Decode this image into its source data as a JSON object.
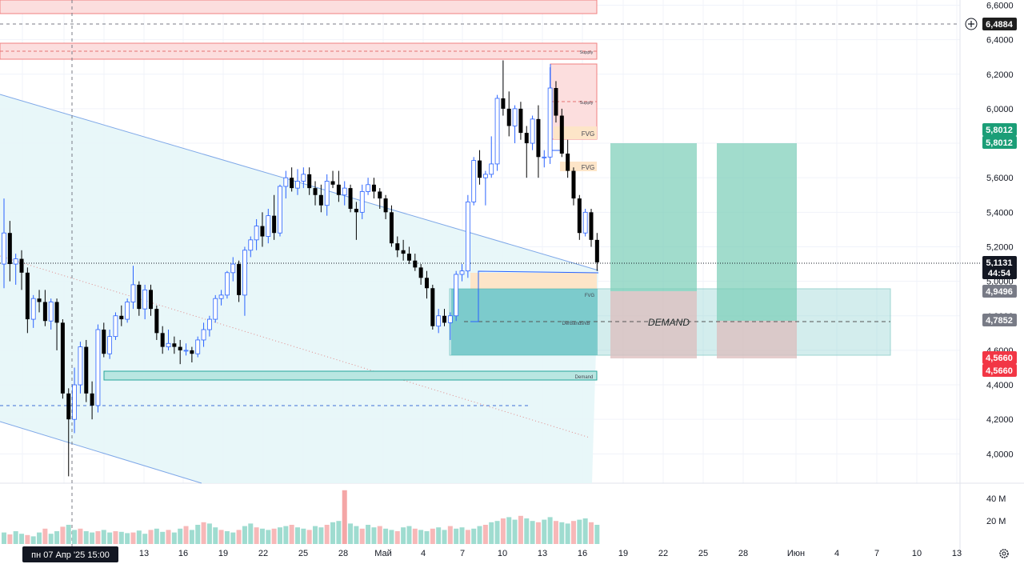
{
  "chart_data": {
    "type": "candlestick",
    "price_axis": {
      "ticks": [
        "6,6000",
        "6,4000",
        "6,2000",
        "6,0000",
        "5,8000",
        "5,6000",
        "5,4000",
        "5,2000",
        "5,0000",
        "4,8000",
        "4,6000",
        "4,4000",
        "4,2000",
        "4,0000"
      ],
      "ylim": [
        3.83,
        6.63
      ]
    },
    "volume_axis": {
      "ticks": [
        "40 M",
        "20 M"
      ]
    },
    "time_axis": {
      "ticks": [
        "13",
        "16",
        "19",
        "22",
        "25",
        "28",
        "Май",
        "4",
        "7",
        "10",
        "13",
        "16",
        "19",
        "22",
        "25",
        "28",
        "Июн",
        "4",
        "7",
        "10",
        "13"
      ],
      "crosshair_label": "пн 07 Апр '25   15:00"
    },
    "price_badges": [
      {
        "text": "6,4884",
        "color": "#1e1e1e"
      },
      {
        "text": "5,8012",
        "color": "#1b9e77"
      },
      {
        "text": "5,8012",
        "color": "#1b9e77"
      },
      {
        "text": "5,1131",
        "color": "#131722"
      },
      {
        "text": "44:54",
        "color": "#131722"
      },
      {
        "text": "4,9496",
        "color": "#787b86"
      },
      {
        "text": "4,7852",
        "color": "#787b86"
      },
      {
        "text": "4,5660",
        "color": "#f23645"
      },
      {
        "text": "4,5660",
        "color": "#f23645"
      }
    ],
    "zones": [
      {
        "label": "Supply",
        "kind": "supply"
      },
      {
        "label": "Supply",
        "kind": "supply"
      },
      {
        "label": "FVG",
        "kind": "fvg"
      },
      {
        "label": "FVG",
        "kind": "fvg"
      },
      {
        "label": "FVG",
        "kind": "fvg"
      },
      {
        "label": "DerBandsNB",
        "kind": "demand"
      },
      {
        "label": "Demand",
        "kind": "demand"
      },
      {
        "label": "DEMAND",
        "kind": "projection"
      }
    ],
    "candles": [
      {
        "o": 5.1,
        "h": 5.48,
        "l": 4.96,
        "c": 5.28
      },
      {
        "o": 5.28,
        "h": 5.35,
        "l": 5.0,
        "c": 5.1
      },
      {
        "o": 5.1,
        "h": 5.16,
        "l": 4.98,
        "c": 5.13
      },
      {
        "o": 5.13,
        "h": 5.18,
        "l": 4.95,
        "c": 5.05
      },
      {
        "o": 5.05,
        "h": 5.08,
        "l": 4.7,
        "c": 4.78
      },
      {
        "o": 4.78,
        "h": 4.92,
        "l": 4.73,
        "c": 4.9
      },
      {
        "o": 4.9,
        "h": 4.95,
        "l": 4.82,
        "c": 4.88
      },
      {
        "o": 4.88,
        "h": 4.95,
        "l": 4.74,
        "c": 4.77
      },
      {
        "o": 4.77,
        "h": 4.9,
        "l": 4.72,
        "c": 4.88
      },
      {
        "o": 4.88,
        "h": 4.9,
        "l": 4.6,
        "c": 4.76
      },
      {
        "o": 4.76,
        "h": 4.78,
        "l": 4.32,
        "c": 4.35
      },
      {
        "o": 4.35,
        "h": 4.38,
        "l": 3.87,
        "c": 4.2
      },
      {
        "o": 4.2,
        "h": 4.5,
        "l": 4.12,
        "c": 4.4
      },
      {
        "o": 4.4,
        "h": 4.65,
        "l": 4.35,
        "c": 4.62
      },
      {
        "o": 4.62,
        "h": 4.66,
        "l": 4.3,
        "c": 4.35
      },
      {
        "o": 4.35,
        "h": 4.42,
        "l": 4.2,
        "c": 4.28
      },
      {
        "o": 4.28,
        "h": 4.75,
        "l": 4.24,
        "c": 4.72
      },
      {
        "o": 4.72,
        "h": 4.76,
        "l": 4.56,
        "c": 4.58
      },
      {
        "o": 4.58,
        "h": 4.72,
        "l": 4.55,
        "c": 4.68
      },
      {
        "o": 4.68,
        "h": 4.82,
        "l": 4.66,
        "c": 4.8
      },
      {
        "o": 4.8,
        "h": 4.86,
        "l": 4.74,
        "c": 4.78
      },
      {
        "o": 4.78,
        "h": 4.9,
        "l": 4.76,
        "c": 4.88
      },
      {
        "o": 4.88,
        "h": 5.09,
        "l": 4.84,
        "c": 4.98
      },
      {
        "o": 4.98,
        "h": 5.0,
        "l": 4.8,
        "c": 4.84
      },
      {
        "o": 4.84,
        "h": 4.98,
        "l": 4.78,
        "c": 4.95
      },
      {
        "o": 4.95,
        "h": 4.98,
        "l": 4.8,
        "c": 4.84
      },
      {
        "o": 4.84,
        "h": 4.86,
        "l": 4.66,
        "c": 4.7
      },
      {
        "o": 4.7,
        "h": 4.74,
        "l": 4.58,
        "c": 4.62
      },
      {
        "o": 4.62,
        "h": 4.72,
        "l": 4.6,
        "c": 4.64
      },
      {
        "o": 4.64,
        "h": 4.68,
        "l": 4.58,
        "c": 4.62
      },
      {
        "o": 4.62,
        "h": 4.66,
        "l": 4.52,
        "c": 4.6
      },
      {
        "o": 4.6,
        "h": 4.64,
        "l": 4.57,
        "c": 4.6
      },
      {
        "o": 4.6,
        "h": 4.62,
        "l": 4.53,
        "c": 4.58
      },
      {
        "o": 4.58,
        "h": 4.68,
        "l": 4.56,
        "c": 4.66
      },
      {
        "o": 4.66,
        "h": 4.76,
        "l": 4.62,
        "c": 4.72
      },
      {
        "o": 4.72,
        "h": 4.8,
        "l": 4.68,
        "c": 4.78
      },
      {
        "o": 4.78,
        "h": 4.92,
        "l": 4.76,
        "c": 4.9
      },
      {
        "o": 4.9,
        "h": 4.95,
        "l": 4.86,
        "c": 4.92
      },
      {
        "o": 4.92,
        "h": 5.06,
        "l": 4.9,
        "c": 5.05
      },
      {
        "o": 5.05,
        "h": 5.14,
        "l": 5.0,
        "c": 5.1
      },
      {
        "o": 5.1,
        "h": 5.12,
        "l": 4.88,
        "c": 4.92
      },
      {
        "o": 4.92,
        "h": 5.2,
        "l": 4.8,
        "c": 5.18
      },
      {
        "o": 5.18,
        "h": 5.26,
        "l": 5.14,
        "c": 5.24
      },
      {
        "o": 5.24,
        "h": 5.36,
        "l": 5.18,
        "c": 5.32
      },
      {
        "o": 5.32,
        "h": 5.4,
        "l": 5.2,
        "c": 5.26
      },
      {
        "o": 5.26,
        "h": 5.42,
        "l": 5.22,
        "c": 5.38
      },
      {
        "o": 5.38,
        "h": 5.5,
        "l": 5.24,
        "c": 5.28
      },
      {
        "o": 5.28,
        "h": 5.56,
        "l": 5.26,
        "c": 5.55
      },
      {
        "o": 5.55,
        "h": 5.64,
        "l": 5.48,
        "c": 5.6
      },
      {
        "o": 5.6,
        "h": 5.66,
        "l": 5.52,
        "c": 5.54
      },
      {
        "o": 5.54,
        "h": 5.65,
        "l": 5.5,
        "c": 5.58
      },
      {
        "o": 5.58,
        "h": 5.66,
        "l": 5.54,
        "c": 5.62
      },
      {
        "o": 5.62,
        "h": 5.66,
        "l": 5.5,
        "c": 5.54
      },
      {
        "o": 5.54,
        "h": 5.58,
        "l": 5.44,
        "c": 5.5
      },
      {
        "o": 5.5,
        "h": 5.56,
        "l": 5.4,
        "c": 5.44
      },
      {
        "o": 5.44,
        "h": 5.62,
        "l": 5.38,
        "c": 5.58
      },
      {
        "o": 5.58,
        "h": 5.64,
        "l": 5.54,
        "c": 5.56
      },
      {
        "o": 5.56,
        "h": 5.64,
        "l": 5.46,
        "c": 5.5
      },
      {
        "o": 5.5,
        "h": 5.58,
        "l": 5.44,
        "c": 5.54
      },
      {
        "o": 5.54,
        "h": 5.56,
        "l": 5.4,
        "c": 5.42
      },
      {
        "o": 5.42,
        "h": 5.46,
        "l": 5.24,
        "c": 5.4
      },
      {
        "o": 5.4,
        "h": 5.56,
        "l": 5.36,
        "c": 5.52
      },
      {
        "o": 5.52,
        "h": 5.6,
        "l": 5.5,
        "c": 5.56
      },
      {
        "o": 5.56,
        "h": 5.6,
        "l": 5.48,
        "c": 5.52
      },
      {
        "o": 5.52,
        "h": 5.54,
        "l": 5.42,
        "c": 5.48
      },
      {
        "o": 5.48,
        "h": 5.5,
        "l": 5.36,
        "c": 5.4
      },
      {
        "o": 5.4,
        "h": 5.44,
        "l": 5.2,
        "c": 5.22
      },
      {
        "o": 5.22,
        "h": 5.26,
        "l": 5.14,
        "c": 5.18
      },
      {
        "o": 5.18,
        "h": 5.24,
        "l": 5.12,
        "c": 5.16
      },
      {
        "o": 5.16,
        "h": 5.2,
        "l": 5.1,
        "c": 5.12
      },
      {
        "o": 5.12,
        "h": 5.16,
        "l": 5.06,
        "c": 5.08
      },
      {
        "o": 5.08,
        "h": 5.1,
        "l": 4.98,
        "c": 5.02
      },
      {
        "o": 5.02,
        "h": 5.06,
        "l": 4.9,
        "c": 4.96
      },
      {
        "o": 4.96,
        "h": 4.98,
        "l": 4.72,
        "c": 4.74
      },
      {
        "o": 4.74,
        "h": 4.84,
        "l": 4.7,
        "c": 4.8
      },
      {
        "o": 4.8,
        "h": 4.84,
        "l": 4.74,
        "c": 4.76
      },
      {
        "o": 4.76,
        "h": 4.82,
        "l": 4.66,
        "c": 4.8
      },
      {
        "o": 4.8,
        "h": 5.06,
        "l": 4.77,
        "c": 5.04
      },
      {
        "o": 5.04,
        "h": 5.1,
        "l": 5.0,
        "c": 5.06
      },
      {
        "o": 5.06,
        "h": 5.5,
        "l": 5.02,
        "c": 5.46
      },
      {
        "o": 5.46,
        "h": 5.72,
        "l": 5.44,
        "c": 5.7
      },
      {
        "o": 5.7,
        "h": 5.76,
        "l": 5.56,
        "c": 5.6
      },
      {
        "o": 5.6,
        "h": 5.64,
        "l": 5.44,
        "c": 5.62
      },
      {
        "o": 5.62,
        "h": 5.84,
        "l": 5.6,
        "c": 5.68
      },
      {
        "o": 5.68,
        "h": 6.08,
        "l": 5.64,
        "c": 6.06
      },
      {
        "o": 6.06,
        "h": 6.28,
        "l": 5.96,
        "c": 6.0
      },
      {
        "o": 6.0,
        "h": 6.1,
        "l": 5.84,
        "c": 5.9
      },
      {
        "o": 5.9,
        "h": 6.02,
        "l": 5.8,
        "c": 6.0
      },
      {
        "o": 6.0,
        "h": 6.04,
        "l": 5.82,
        "c": 5.86
      },
      {
        "o": 5.86,
        "h": 5.9,
        "l": 5.6,
        "c": 5.8
      },
      {
        "o": 5.8,
        "h": 5.96,
        "l": 5.76,
        "c": 5.94
      },
      {
        "o": 5.94,
        "h": 6.02,
        "l": 5.6,
        "c": 5.72
      },
      {
        "o": 5.72,
        "h": 5.76,
        "l": 5.66,
        "c": 5.72
      },
      {
        "o": 5.72,
        "h": 6.24,
        "l": 5.68,
        "c": 6.12
      },
      {
        "o": 6.12,
        "h": 6.16,
        "l": 5.92,
        "c": 5.96
      },
      {
        "o": 5.96,
        "h": 6.0,
        "l": 5.72,
        "c": 5.74
      },
      {
        "o": 5.74,
        "h": 5.82,
        "l": 5.6,
        "c": 5.64
      },
      {
        "o": 5.64,
        "h": 5.66,
        "l": 5.44,
        "c": 5.48
      },
      {
        "o": 5.48,
        "h": 5.5,
        "l": 5.24,
        "c": 5.28
      },
      {
        "o": 5.28,
        "h": 5.42,
        "l": 5.26,
        "c": 5.4
      },
      {
        "o": 5.4,
        "h": 5.42,
        "l": 5.2,
        "c": 5.24
      },
      {
        "o": 5.24,
        "h": 5.28,
        "l": 5.06,
        "c": 5.11
      }
    ],
    "volumes": [
      0.18,
      0.15,
      0.2,
      0.16,
      0.14,
      0.12,
      0.18,
      0.24,
      0.16,
      0.2,
      0.27,
      0.3,
      0.22,
      0.24,
      0.2,
      0.18,
      0.2,
      0.22,
      0.18,
      0.2,
      0.19,
      0.17,
      0.18,
      0.21,
      0.16,
      0.22,
      0.24,
      0.19,
      0.22,
      0.18,
      0.24,
      0.28,
      0.22,
      0.3,
      0.34,
      0.32,
      0.26,
      0.22,
      0.2,
      0.18,
      0.22,
      0.28,
      0.32,
      0.26,
      0.24,
      0.22,
      0.24,
      0.26,
      0.28,
      0.3,
      0.26,
      0.24,
      0.22,
      0.28,
      0.26,
      0.3,
      0.34,
      0.36,
      0.84,
      0.32,
      0.28,
      0.24,
      0.3,
      0.26,
      0.28,
      0.24,
      0.22,
      0.2,
      0.26,
      0.28,
      0.24,
      0.22,
      0.2,
      0.24,
      0.26,
      0.22,
      0.28,
      0.24,
      0.26,
      0.22,
      0.24,
      0.28,
      0.3,
      0.34,
      0.36,
      0.4,
      0.42,
      0.38,
      0.44,
      0.4,
      0.36,
      0.34,
      0.38,
      0.42,
      0.36,
      0.34,
      0.32,
      0.36,
      0.38,
      0.4,
      0.34,
      0.3
    ]
  }
}
